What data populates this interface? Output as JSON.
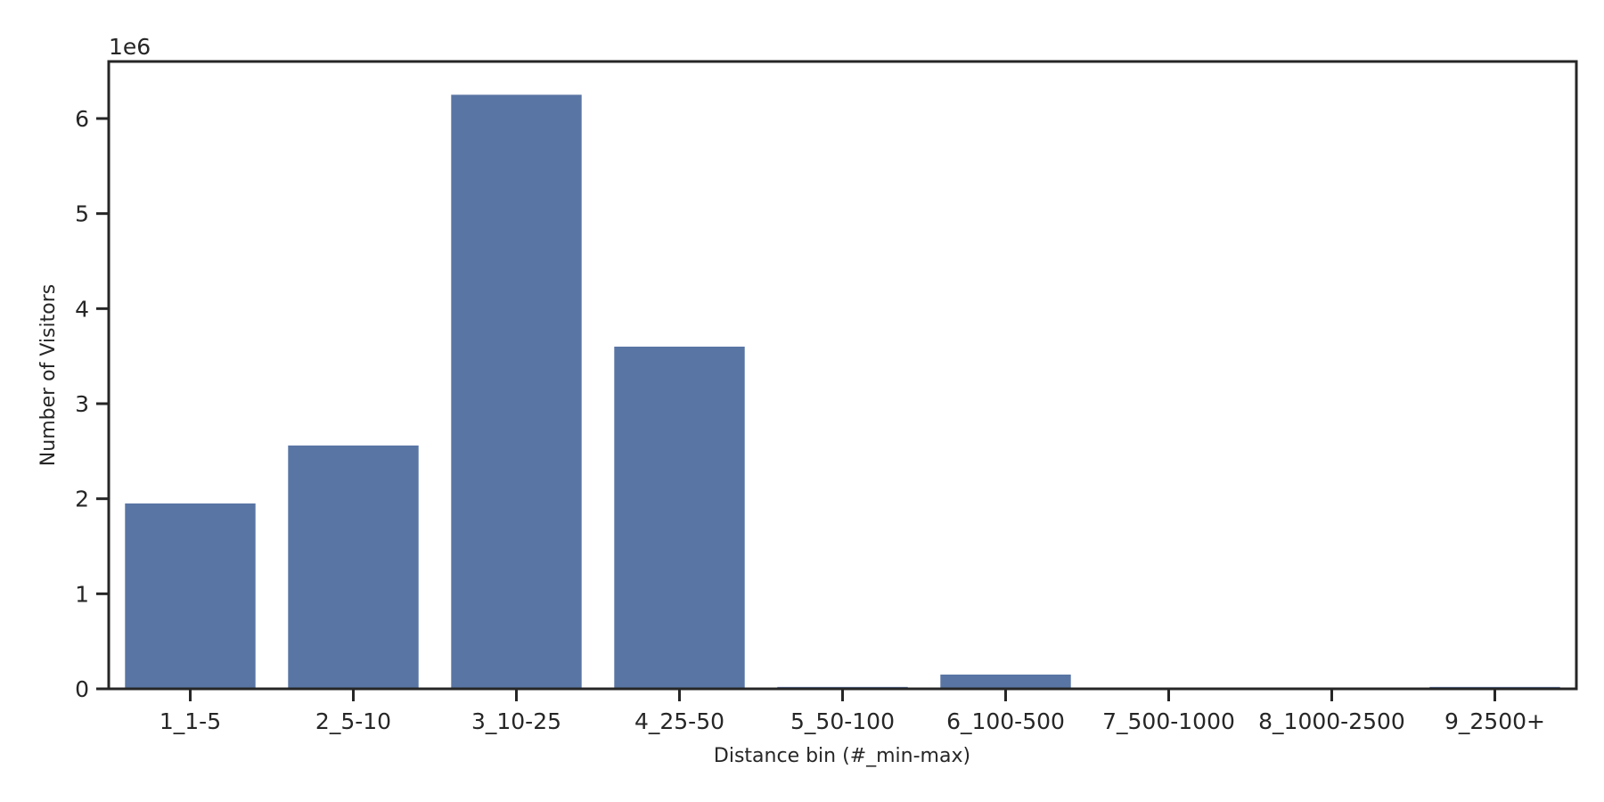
{
  "chart_data": {
    "type": "bar",
    "categories": [
      "1_1-5",
      "2_5-10",
      "3_10-25",
      "4_25-50",
      "5_50-100",
      "6_100-500",
      "7_500-1000",
      "8_1000-2500",
      "9_2500+"
    ],
    "values": [
      1950000,
      2560000,
      6250000,
      3600000,
      20000,
      150000,
      0,
      0,
      20000
    ],
    "xlabel": "Distance bin (#_min-max)",
    "ylabel": "Number of Visitors",
    "y_offset_label": "1e6",
    "y_tick_values": [
      0,
      1000000,
      2000000,
      3000000,
      4000000,
      5000000,
      6000000
    ],
    "y_tick_labels": [
      "0",
      "1",
      "2",
      "3",
      "4",
      "5",
      "6"
    ],
    "ylim": [
      0,
      6600000
    ],
    "grid": false,
    "colors": {
      "bar": "#5975a4",
      "axis": "#262626"
    }
  }
}
